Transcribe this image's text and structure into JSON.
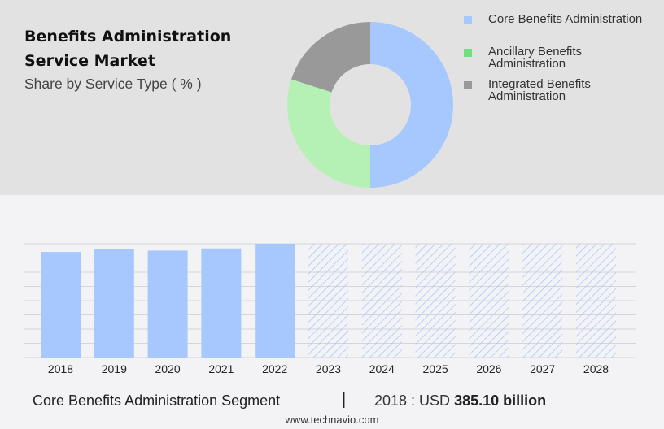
{
  "header": {
    "title": "Benefits Administration Service Market",
    "subtitle": "Share by Service Type ( % )"
  },
  "chart_data": [
    {
      "type": "pie",
      "title": "Share by Service Type ( % )",
      "slices": [
        {
          "label": "Core Benefits Administration",
          "value": 50,
          "color": "#a6c8ff"
        },
        {
          "label": "Ancillary Benefits Administration",
          "value": 30,
          "color": "#b5f0b5"
        },
        {
          "label": "Integrated Benefits Administration",
          "value": 20,
          "color": "#999999"
        }
      ],
      "legend_swatch_colors": [
        "#a6c8ff",
        "#6ee07e",
        "#999999"
      ]
    },
    {
      "type": "bar",
      "categories": [
        "2018",
        "2019",
        "2020",
        "2021",
        "2022",
        "2023",
        "2024",
        "2025",
        "2026",
        "2027",
        "2028"
      ],
      "values": [
        385.1,
        395,
        390,
        398,
        415,
        null,
        null,
        null,
        null,
        null,
        null
      ],
      "forecast_categories": [
        "2023",
        "2024",
        "2025",
        "2026",
        "2027",
        "2028"
      ],
      "grid": true,
      "colors": {
        "bar": "#a6c8ff",
        "forecast_hatch": "#a6c8ff"
      }
    }
  ],
  "footer": {
    "segment_label": "Core Benefits Administration Segment",
    "divider": "|",
    "value_prefix": "2018 : USD",
    "value": "385.10 billion",
    "source": "www.technavio.com"
  }
}
